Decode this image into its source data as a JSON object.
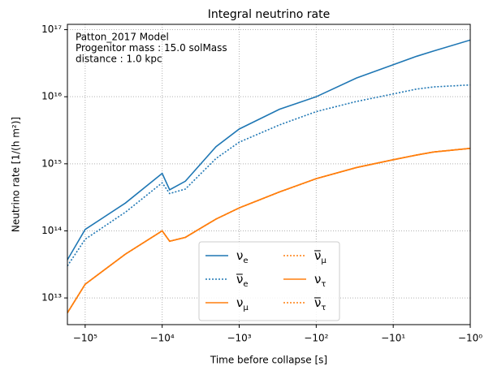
{
  "chart_data": {
    "type": "line",
    "title": "Integral neutrino rate",
    "annotation": [
      "Patton_2017 Model",
      "Progenitor mass  : 15.0 solMass",
      "distance : 1.0 kpc"
    ],
    "x_label": "Time before collapse [s]",
    "y_label": "Neutrino rate [1/(h m²)]",
    "x": [
      -170000,
      -100000,
      -30000,
      -10000,
      -8000,
      -5000,
      -2000,
      -1000,
      -300,
      -100,
      -30,
      -10,
      -5,
      -3,
      -1
    ],
    "series": [
      {
        "name": "νe",
        "color": "#1f77b4",
        "linestyle": "solid",
        "values": [
          37000000000000.0,
          105000000000000.0,
          260000000000000.0,
          720000000000000.0,
          410000000000000.0,
          550000000000000.0,
          1800000000000000.0,
          3300000000000000.0,
          6500000000000000.0,
          1e+16,
          1.9e+16,
          3e+16,
          4e+16,
          4.8e+16,
          7e+16
        ]
      },
      {
        "name": "ν̅e",
        "color": "#1f77b4",
        "linestyle": "dotted",
        "values": [
          30000000000000.0,
          75000000000000.0,
          190000000000000.0,
          520000000000000.0,
          360000000000000.0,
          420000000000000.0,
          1200000000000000.0,
          2100000000000000.0,
          3800000000000000.0,
          6000000000000000.0,
          8500000000000000.0,
          1.1e+16,
          1.3e+16,
          1.4e+16,
          1.5e+16
        ]
      },
      {
        "name": "νμ",
        "color": "#ff7f0e",
        "linestyle": "solid",
        "values": [
          6000000000000.0,
          16000000000000.0,
          45000000000000.0,
          100000000000000.0,
          70000000000000.0,
          80000000000000.0,
          150000000000000.0,
          220000000000000.0,
          380000000000000.0,
          600000000000000.0,
          880000000000000.0,
          1150000000000000.0,
          1350000000000000.0,
          1500000000000000.0,
          1700000000000000.0
        ]
      },
      {
        "name": "ν̅μ",
        "color": "#ff7f0e",
        "linestyle": "dotted",
        "values": [
          6000000000000.0,
          16000000000000.0,
          45000000000000.0,
          100000000000000.0,
          70000000000000.0,
          80000000000000.0,
          150000000000000.0,
          220000000000000.0,
          380000000000000.0,
          600000000000000.0,
          880000000000000.0,
          1150000000000000.0,
          1350000000000000.0,
          1500000000000000.0,
          1700000000000000.0
        ]
      },
      {
        "name": "ντ",
        "color": "#ff7f0e",
        "linestyle": "solid",
        "values": [
          6000000000000.0,
          16000000000000.0,
          45000000000000.0,
          100000000000000.0,
          70000000000000.0,
          80000000000000.0,
          150000000000000.0,
          220000000000000.0,
          380000000000000.0,
          600000000000000.0,
          880000000000000.0,
          1150000000000000.0,
          1350000000000000.0,
          1500000000000000.0,
          1700000000000000.0
        ]
      },
      {
        "name": "ν̅τ",
        "color": "#ff7f0e",
        "linestyle": "dotted",
        "values": [
          6000000000000.0,
          16000000000000.0,
          45000000000000.0,
          100000000000000.0,
          70000000000000.0,
          80000000000000.0,
          150000000000000.0,
          220000000000000.0,
          380000000000000.0,
          600000000000000.0,
          880000000000000.0,
          1150000000000000.0,
          1350000000000000.0,
          1500000000000000.0,
          1700000000000000.0
        ]
      }
    ],
    "xscale": "log",
    "yscale": "log",
    "xlim": [
      -170000,
      -1
    ],
    "ylim": [
      4000000000000.0,
      1.2e+17
    ],
    "xticks": [
      {
        "value": -100000,
        "label": "−10⁵"
      },
      {
        "value": -10000,
        "label": "−10⁴"
      },
      {
        "value": -1000,
        "label": "−10³"
      },
      {
        "value": -100,
        "label": "−10²"
      },
      {
        "value": -10,
        "label": "−10¹"
      },
      {
        "value": -1,
        "label": "−10⁰"
      }
    ],
    "yticks": [
      {
        "value": 10000000000000.0,
        "label": "10¹³"
      },
      {
        "value": 100000000000000.0,
        "label": "10¹⁴"
      },
      {
        "value": 1000000000000000.0,
        "label": "10¹⁵"
      },
      {
        "value": 1e+16,
        "label": "10¹⁶"
      },
      {
        "value": 1e+17,
        "label": "10¹⁷"
      }
    ],
    "grid": true,
    "legend": "lower center"
  }
}
